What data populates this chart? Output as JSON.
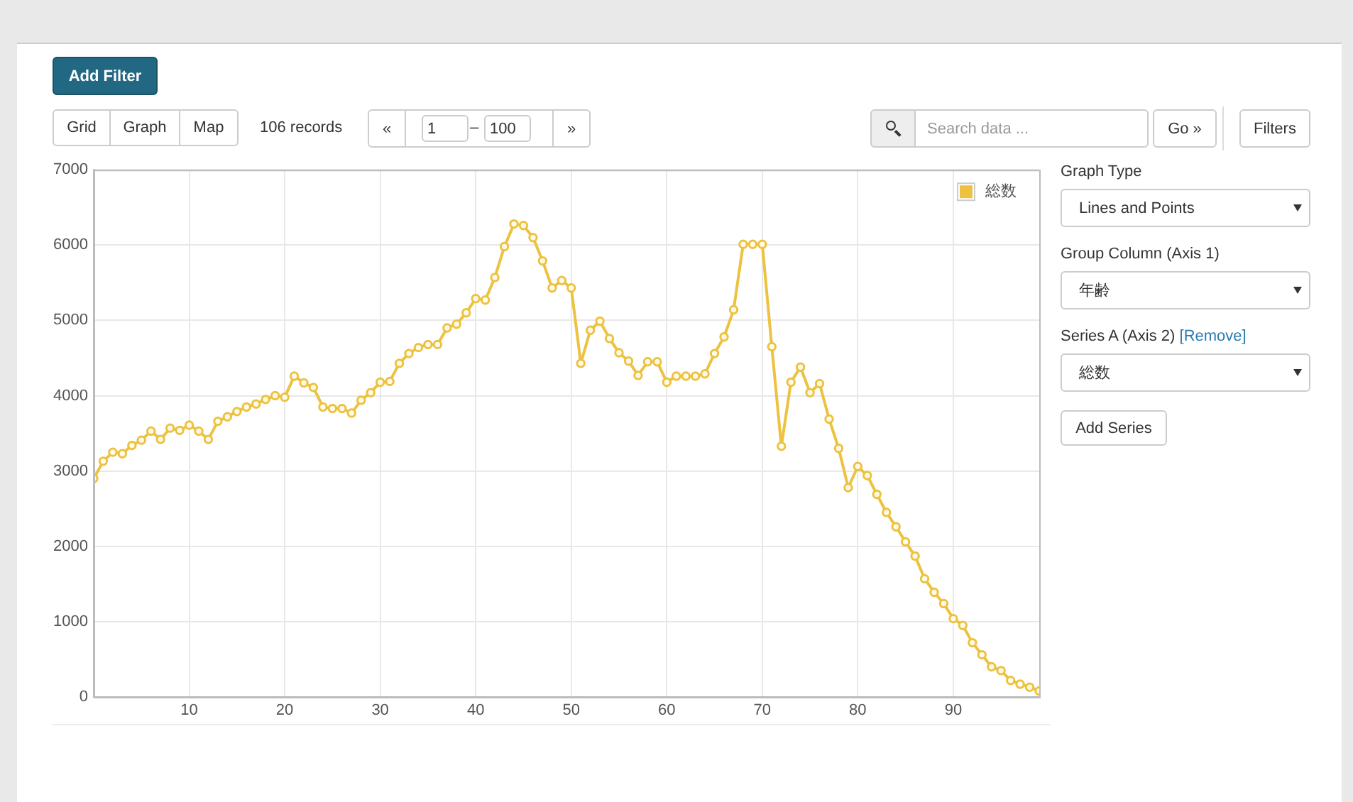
{
  "chart_data": {
    "type": "line",
    "x": [
      0,
      1,
      2,
      3,
      4,
      5,
      6,
      7,
      8,
      9,
      10,
      11,
      12,
      13,
      14,
      15,
      16,
      17,
      18,
      19,
      20,
      21,
      22,
      23,
      24,
      25,
      26,
      27,
      28,
      29,
      30,
      31,
      32,
      33,
      34,
      35,
      36,
      37,
      38,
      39,
      40,
      41,
      42,
      43,
      44,
      45,
      46,
      47,
      48,
      49,
      50,
      51,
      52,
      53,
      54,
      55,
      56,
      57,
      58,
      59,
      60,
      61,
      62,
      63,
      64,
      65,
      66,
      67,
      68,
      69,
      70,
      71,
      72,
      73,
      74,
      75,
      76,
      77,
      78,
      79,
      80,
      81,
      82,
      83,
      84,
      85,
      86,
      87,
      88,
      89,
      90,
      91,
      92,
      93,
      94,
      95,
      96,
      97,
      98,
      99
    ],
    "series": [
      {
        "name": "総数",
        "color": "#edc240",
        "values": [
          2900,
          3130,
          3250,
          3230,
          3340,
          3410,
          3530,
          3420,
          3570,
          3540,
          3610,
          3530,
          3420,
          3660,
          3720,
          3790,
          3850,
          3890,
          3950,
          4000,
          3980,
          4260,
          4170,
          4110,
          3850,
          3830,
          3830,
          3770,
          3940,
          4040,
          4180,
          4190,
          4430,
          4560,
          4640,
          4680,
          4680,
          4900,
          4950,
          5100,
          5290,
          5270,
          5570,
          5980,
          6280,
          6260,
          6100,
          5790,
          5430,
          5530,
          5430,
          4430,
          4870,
          4990,
          4760,
          4570,
          4460,
          4270,
          4450,
          4450,
          4180,
          4260,
          4260,
          4260,
          4290,
          4560,
          4780,
          5140,
          6010,
          6010,
          6010,
          4650,
          3330,
          4180,
          4380,
          4040,
          4160,
          3690,
          3300,
          2780,
          3060,
          2940,
          2690,
          2450,
          2260,
          2060,
          1870,
          1570,
          1390,
          1240,
          1040,
          950,
          720,
          560,
          400,
          350,
          220,
          170,
          130,
          80
        ]
      }
    ],
    "xlim": [
      0,
      99
    ],
    "xticks": [
      10,
      20,
      30,
      40,
      50,
      60,
      70,
      80,
      90
    ],
    "ylim": [
      0,
      7000
    ],
    "yticks": [
      0,
      1000,
      2000,
      3000,
      4000,
      5000,
      6000,
      7000
    ],
    "grid": true,
    "legend": "top right",
    "marker": "circle",
    "annotations": [
      "Add Filter",
      "Grid",
      "Graph",
      "Map",
      "106 records",
      "«",
      "1",
      "–",
      "100",
      "»",
      "Search data ...",
      "Go »",
      "Filters",
      "Graph Type",
      "Lines and Points",
      "Group Column (Axis 1)",
      "年齢",
      "Series A (Axis 2)",
      "[Remove]",
      "総数",
      "Add Series"
    ]
  }
}
